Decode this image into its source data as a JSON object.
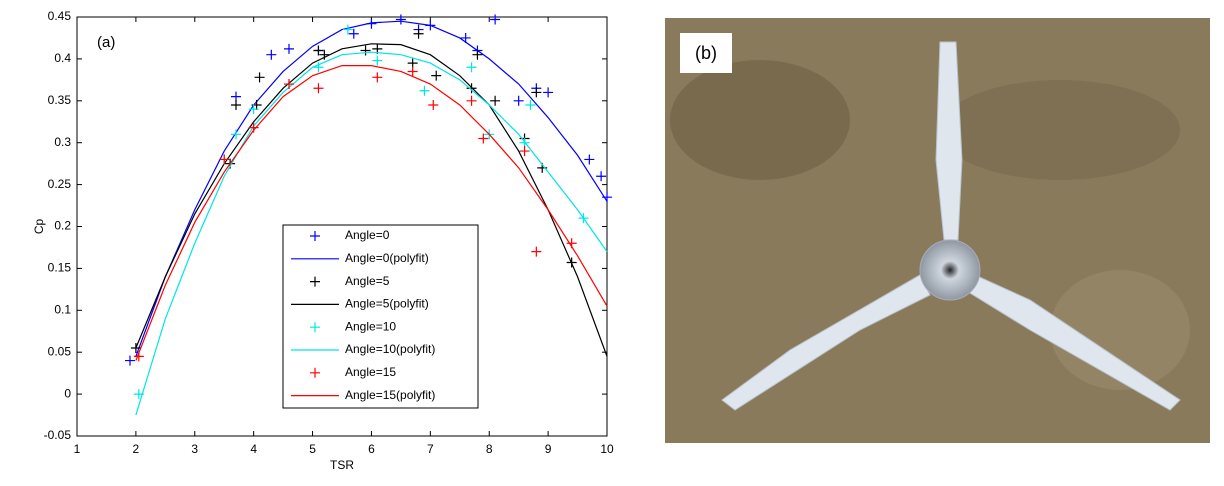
{
  "chart_data": {
    "type": "scatter",
    "annotation": "(a)",
    "x_label": "TSR",
    "y_label": "Cp",
    "xlim": [
      1,
      10
    ],
    "ylim": [
      -0.05,
      0.45
    ],
    "xticks": [
      1,
      2,
      3,
      4,
      5,
      6,
      7,
      8,
      9,
      10
    ],
    "yticks": [
      -0.05,
      0,
      0.05,
      0.1,
      0.15,
      0.2,
      0.25,
      0.3,
      0.35,
      0.4,
      0.45
    ],
    "series": [
      {
        "name": "Angle=0",
        "color": "#0000ff",
        "mode": "markers",
        "x": [
          1.9,
          3.7,
          4.3,
          4.6,
          5.1,
          5.7,
          6.0,
          6.5,
          6.8,
          7.0,
          7.6,
          7.8,
          8.1,
          8.5,
          8.8,
          9.0,
          9.7,
          9.9,
          10
        ],
        "values": [
          0.04,
          0.355,
          0.405,
          0.412,
          0.41,
          0.43,
          0.442,
          0.447,
          0.435,
          0.44,
          0.425,
          0.41,
          0.447,
          0.35,
          0.365,
          0.36,
          0.28,
          0.26,
          0.235
        ]
      },
      {
        "name": "Angle=0(polyfit)",
        "color": "#0000ff",
        "mode": "line",
        "x": [
          2,
          2.5,
          3,
          3.5,
          4,
          4.5,
          5,
          5.5,
          6,
          6.5,
          7,
          7.5,
          8,
          8.5,
          9,
          9.5,
          10
        ],
        "values": [
          0.045,
          0.14,
          0.22,
          0.29,
          0.345,
          0.385,
          0.415,
          0.435,
          0.443,
          0.445,
          0.44,
          0.425,
          0.4,
          0.37,
          0.33,
          0.285,
          0.23
        ]
      },
      {
        "name": "Angle=5",
        "color": "#000000",
        "mode": "markers",
        "x": [
          2,
          3.6,
          3.7,
          4.05,
          4.1,
          5.1,
          5.2,
          5.9,
          6.1,
          6.7,
          6.8,
          7.1,
          7.7,
          7.8,
          8.1,
          8.6,
          8.8,
          8.9,
          9.4
        ],
        "values": [
          0.055,
          0.275,
          0.345,
          0.345,
          0.378,
          0.41,
          0.405,
          0.41,
          0.412,
          0.395,
          0.43,
          0.38,
          0.365,
          0.405,
          0.35,
          0.305,
          0.36,
          0.27,
          0.157
        ]
      },
      {
        "name": "Angle=5(polyfit)",
        "color": "#000000",
        "mode": "line",
        "x": [
          2,
          2.5,
          3,
          3.5,
          4,
          4.5,
          5,
          5.5,
          6,
          6.5,
          7,
          7.5,
          8,
          8.5,
          9,
          9.5,
          10
        ],
        "values": [
          0.055,
          0.14,
          0.215,
          0.275,
          0.325,
          0.365,
          0.395,
          0.412,
          0.418,
          0.417,
          0.405,
          0.38,
          0.345,
          0.29,
          0.22,
          0.14,
          0.045
        ]
      },
      {
        "name": "Angle=10",
        "color": "#00e5e5",
        "mode": "markers",
        "x": [
          2.05,
          3.5,
          3.7,
          4.0,
          4.6,
          5.1,
          5.6,
          6.1,
          6.9,
          7.7,
          8.0,
          8.6,
          8.7,
          9.6
        ],
        "values": [
          0.0,
          0.28,
          0.31,
          0.34,
          0.37,
          0.39,
          0.435,
          0.398,
          0.362,
          0.39,
          0.31,
          0.3,
          0.345,
          0.21
        ]
      },
      {
        "name": "Angle=10(polyfit)",
        "color": "#00e5e5",
        "mode": "line",
        "x": [
          2,
          2.5,
          3,
          3.5,
          4,
          4.5,
          5,
          5.5,
          6,
          6.5,
          7,
          7.5,
          8,
          8.5,
          9,
          9.5,
          10
        ],
        "values": [
          -0.025,
          0.09,
          0.18,
          0.26,
          0.32,
          0.36,
          0.39,
          0.405,
          0.408,
          0.405,
          0.395,
          0.375,
          0.345,
          0.31,
          0.265,
          0.22,
          0.17
        ]
      },
      {
        "name": "Angle=15",
        "color": "#ff0000",
        "mode": "markers",
        "x": [
          2.05,
          3.5,
          4.0,
          4.6,
          5.1,
          6.1,
          6.7,
          7.05,
          7.7,
          7.9,
          8.6,
          8.8,
          9.4
        ],
        "values": [
          0.045,
          0.28,
          0.318,
          0.37,
          0.365,
          0.378,
          0.385,
          0.345,
          0.35,
          0.305,
          0.29,
          0.17,
          0.18
        ]
      },
      {
        "name": "Angle=15(polyfit)",
        "color": "#ff0000",
        "mode": "line",
        "x": [
          2,
          2.5,
          3,
          3.5,
          4,
          4.5,
          5,
          5.5,
          6,
          6.5,
          7,
          7.5,
          8,
          8.5,
          9,
          9.5,
          10
        ],
        "values": [
          0.04,
          0.13,
          0.205,
          0.265,
          0.315,
          0.355,
          0.38,
          0.392,
          0.392,
          0.385,
          0.37,
          0.345,
          0.31,
          0.27,
          0.22,
          0.165,
          0.105
        ]
      }
    ]
  },
  "photo": {
    "label": "(b)"
  }
}
